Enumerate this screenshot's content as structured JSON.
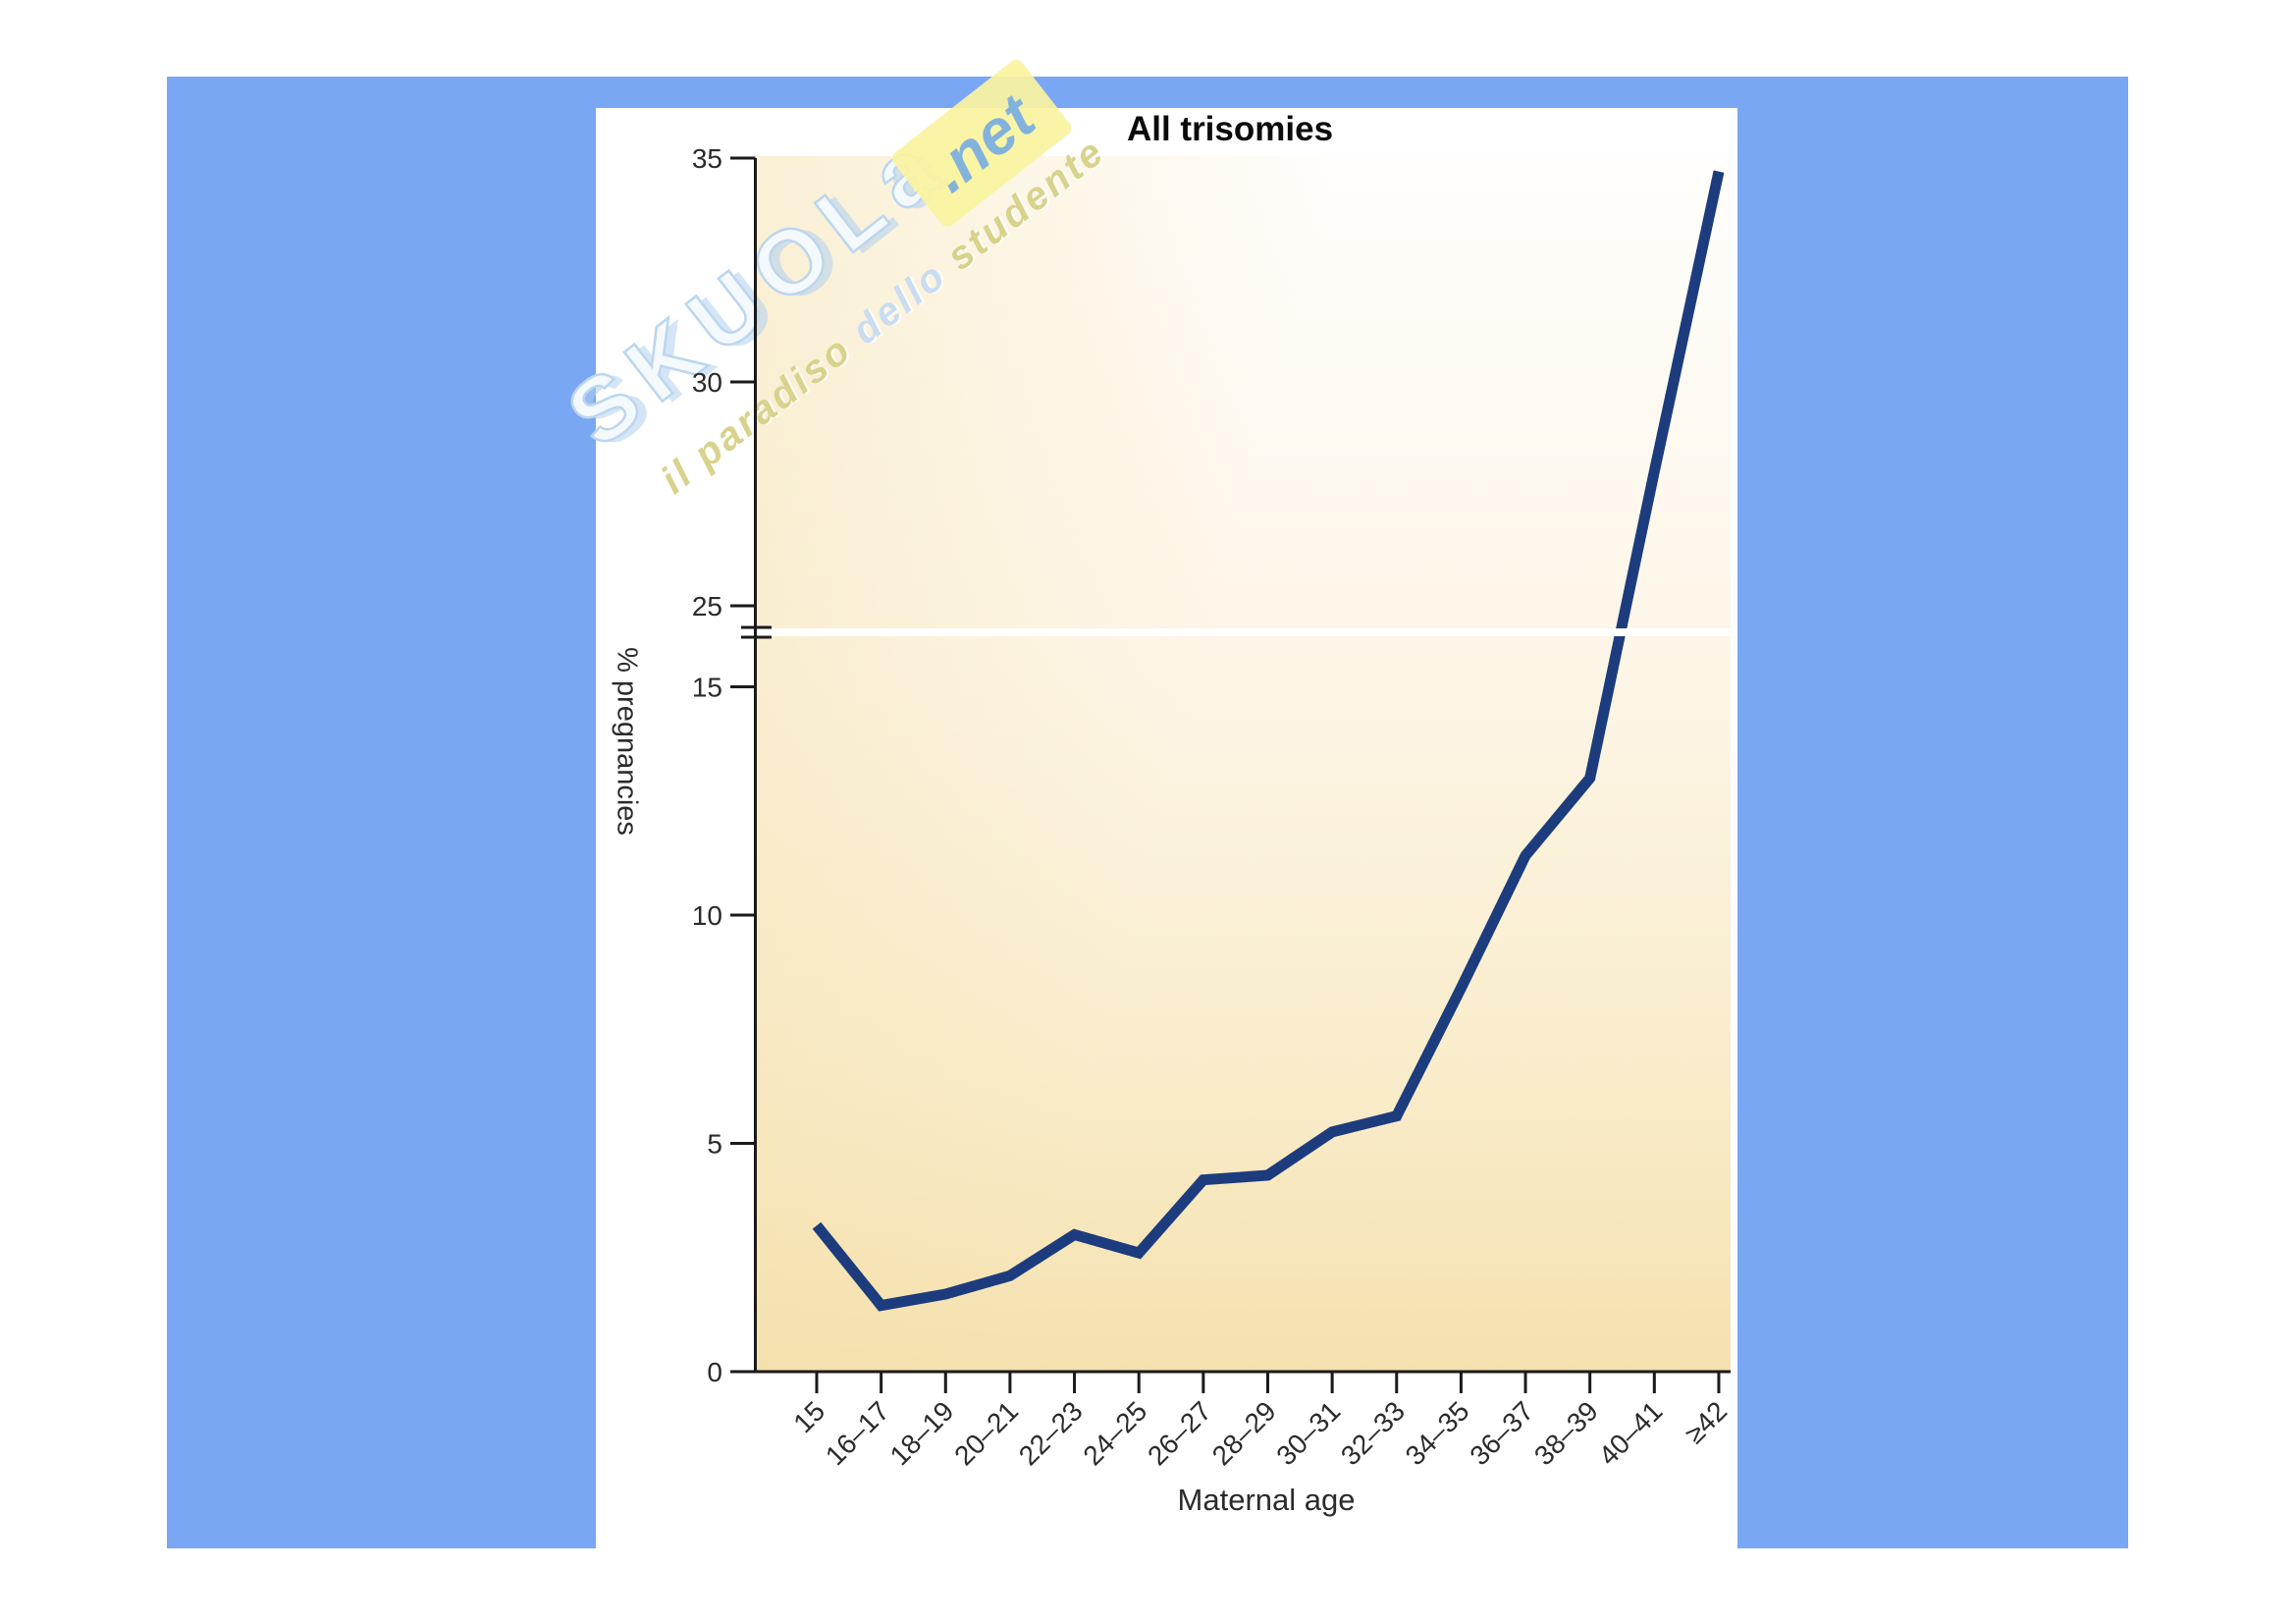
{
  "chart_data": {
    "type": "line",
    "title": "All trisomies",
    "xlabel": "Maternal age",
    "ylabel": "% pregnancies",
    "categories": [
      "15",
      "16–17",
      "18–19",
      "20–21",
      "22–23",
      "24–25",
      "26–27",
      "28–29",
      "30–31",
      "32–33",
      "34–35",
      "36–37",
      "38–39",
      "40–41",
      "≥42"
    ],
    "values": [
      3.2,
      1.45,
      1.7,
      2.1,
      3.0,
      2.6,
      4.2,
      4.3,
      5.25,
      5.6,
      8.4,
      11.3,
      13.0,
      28.0,
      34.7
    ],
    "series_name": "All trisomies (% of pregnancies)",
    "y_axis": {
      "lower_segment_ticks": [
        0,
        5,
        10,
        15
      ],
      "upper_segment_ticks": [
        25,
        30,
        35
      ],
      "broken_axis": true,
      "break_between": [
        16,
        24
      ],
      "ylim": [
        0,
        35
      ]
    },
    "grid": false,
    "legend": "none"
  },
  "watermark": {
    "brand": "SKUOLa",
    "net_badge": ".net",
    "tagline_part1": "il paradiso ",
    "tagline_part2": "dello ",
    "tagline_part3": "studente"
  },
  "colors": {
    "backdrop_blue": "#79a7f3",
    "line_navy": "#1d3c7e",
    "axis_ink": "#1a1a1a",
    "tick_text": "#2b2b2b",
    "plot_fill_warm": "#f5e1ae",
    "break_band_white": "#ffffff"
  }
}
